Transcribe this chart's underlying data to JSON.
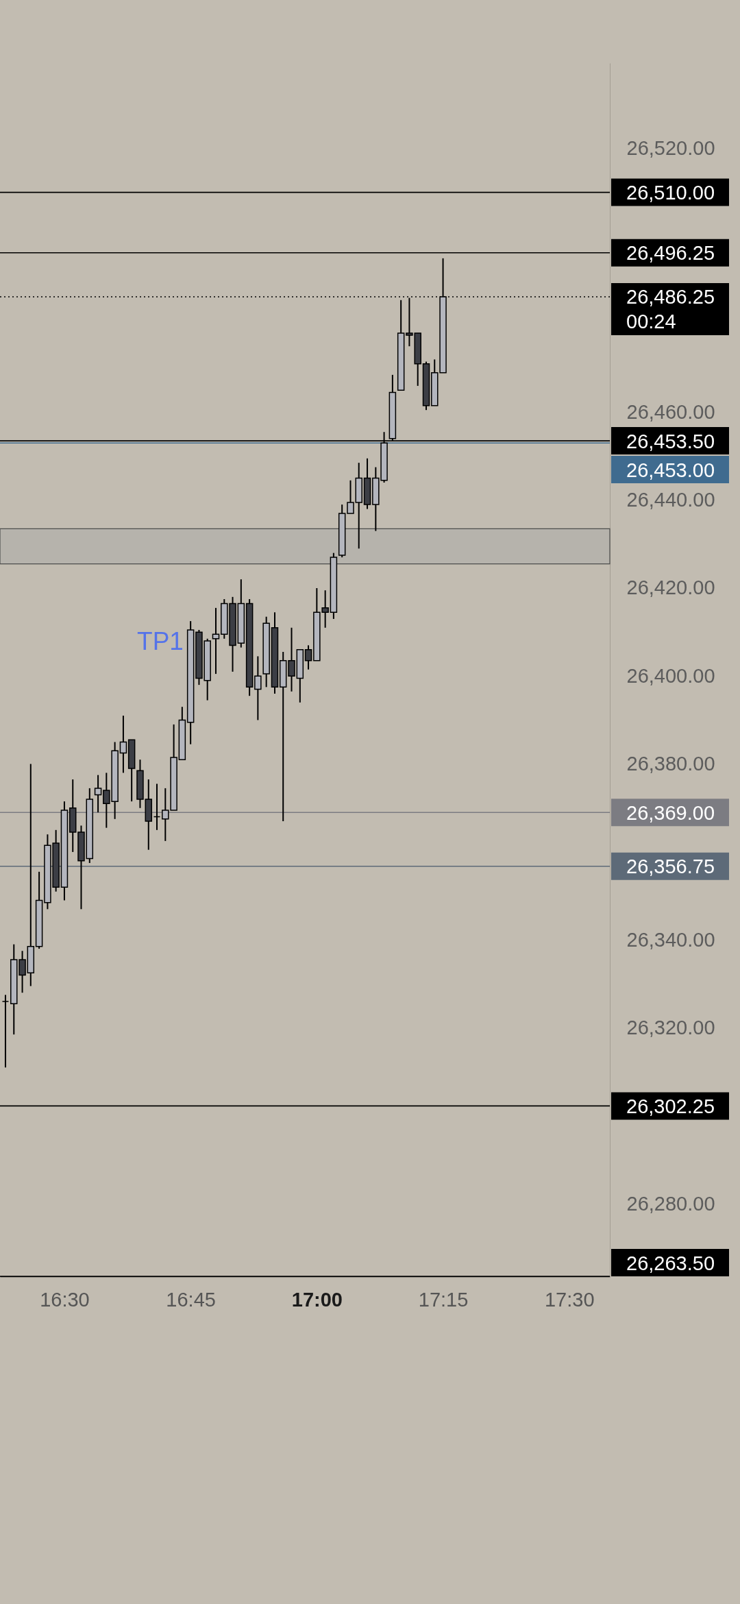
{
  "chart_data": {
    "type": "candlestick",
    "x": [
      16.3833,
      16.4,
      16.4167,
      16.4333,
      16.45,
      16.4667,
      16.4833,
      16.5,
      16.5167,
      16.5333,
      16.55,
      16.5667,
      16.5833,
      16.6,
      16.6167,
      16.6333,
      16.65,
      16.6667,
      16.6833,
      16.7,
      16.7167,
      16.7333,
      16.75,
      16.7667,
      16.7833,
      16.8,
      16.8167,
      16.8333,
      16.85,
      16.8667,
      16.8833,
      16.9,
      16.9167,
      16.9333,
      16.95,
      16.9667,
      16.9833,
      17,
      17.0167,
      17.0333,
      17.05,
      17.0667,
      17.0833,
      17.1,
      17.1167,
      17.1333,
      17.15,
      17.1667,
      17.1833,
      17.2,
      17.2167,
      17.2333,
      17.25
    ],
    "ohlc": [
      [
        26326,
        26327.5,
        26311,
        26326
      ],
      [
        26325.5,
        26339,
        26318.5,
        26335.5
      ],
      [
        26335.5,
        26337.5,
        26328,
        26332
      ],
      [
        26332.5,
        26380,
        26329.5,
        26338.5
      ],
      [
        26338.5,
        26355.5,
        26338,
        26349
      ],
      [
        26348.5,
        26364,
        26347,
        26361.5
      ],
      [
        26362,
        26365,
        26351,
        26352
      ],
      [
        26352,
        26371.5,
        26349,
        26369.5
      ],
      [
        26370,
        26376.5,
        26360,
        26364.5
      ],
      [
        26364.5,
        26366,
        26347,
        26358
      ],
      [
        26358.5,
        26374.5,
        26357.5,
        26372
      ],
      [
        26373,
        26377.5,
        26369,
        26374.5
      ],
      [
        26374,
        26378,
        26365.5,
        26371
      ],
      [
        26371.5,
        26385,
        26367.5,
        26383
      ],
      [
        26382.5,
        26391,
        26378,
        26385
      ],
      [
        26385.5,
        26385.5,
        26371.5,
        26379
      ],
      [
        26378.5,
        26381,
        26370,
        26372
      ],
      [
        26372,
        26376.5,
        26360.5,
        26367
      ],
      [
        26368,
        26375.5,
        26365,
        26368
      ],
      [
        26367.5,
        26374.5,
        26362.5,
        26369.5
      ],
      [
        26369.5,
        26389,
        26369.5,
        26381.5
      ],
      [
        26381,
        26393,
        26381,
        26390
      ],
      [
        26389.5,
        26412.5,
        26384.5,
        26410.5
      ],
      [
        26410,
        26410.5,
        26398,
        26399.5
      ],
      [
        26399,
        26408.5,
        26394.5,
        26408
      ],
      [
        26408.5,
        26415.5,
        26400.5,
        26409.5
      ],
      [
        26409.5,
        26417.5,
        26408.5,
        26416.5
      ],
      [
        26416.5,
        26418,
        26401,
        26407
      ],
      [
        26407.5,
        26422,
        26406.5,
        26416.5
      ],
      [
        26416.5,
        26417.5,
        26395.5,
        26397.5
      ],
      [
        26397,
        26404.5,
        26390,
        26400
      ],
      [
        26400.5,
        26413.5,
        26397.5,
        26412
      ],
      [
        26411,
        26414.5,
        26396,
        26397.5
      ],
      [
        26397.5,
        26405.5,
        26367,
        26403.5
      ],
      [
        26403.5,
        26411,
        26396.5,
        26400
      ],
      [
        26399.5,
        26406,
        26394,
        26406
      ],
      [
        26406,
        26407,
        26401.5,
        26403.5
      ],
      [
        26403.5,
        26420,
        26403.5,
        26414.5
      ],
      [
        26415.5,
        26419.5,
        26411,
        26414.5
      ],
      [
        26414.5,
        26428,
        26413,
        26427
      ],
      [
        26427.5,
        26439,
        26427,
        26437
      ],
      [
        26437,
        26444.5,
        26437,
        26439.5
      ],
      [
        26439.5,
        26448.5,
        26429,
        26445
      ],
      [
        26445,
        26449.5,
        26438,
        26439
      ],
      [
        26439,
        26447.5,
        26433,
        26445
      ],
      [
        26444.5,
        26455.5,
        26444,
        26453
      ],
      [
        26454,
        26468.5,
        26453.5,
        26464.5
      ],
      [
        26465,
        26485.5,
        26465,
        26478
      ],
      [
        26478,
        26486,
        26475,
        26477.5
      ],
      [
        26478,
        26478,
        26466,
        26471
      ],
      [
        26471,
        26471.5,
        26460.5,
        26461.5
      ],
      [
        26461.5,
        26472,
        26461.5,
        26469
      ],
      [
        26469,
        26495,
        26469,
        26486.25
      ]
    ],
    "colors": [
      "#000000",
      "#b4b6be",
      "#3c3e45",
      "#b4b6be",
      "#b4b6be",
      "#b4b6be",
      "#3c3e45",
      "#b4b6be",
      "#3c3e45",
      "#3c3e45",
      "#b4b6be",
      "#b4b6be",
      "#3c3e45",
      "#b4b6be",
      "#b4b6be",
      "#3c3e45",
      "#3c3e45",
      "#3c3e45",
      "#000000",
      "#b4b6be",
      "#b4b6be",
      "#b4b6be",
      "#b4b6be",
      "#3c3e45",
      "#b4b6be",
      "#b4b6be",
      "#b4b6be",
      "#3c3e45",
      "#b4b6be",
      "#3c3e45",
      "#b4b6be",
      "#b4b6be",
      "#3c3e45",
      "#b4b6be",
      "#3c3e45",
      "#b4b6be",
      "#3c3e45",
      "#b4b6be",
      "#3c3e45",
      "#b4b6be",
      "#b4b6be",
      "#b4b6be",
      "#b4b6be",
      "#3c3e45",
      "#b4b6be",
      "#b4b6be",
      "#b4b6be",
      "#b4b6be",
      "#3c3e45",
      "#3c3e45",
      "#3c3e45",
      "#b4b6be",
      "#b4b6be"
    ],
    "xlim": [
      16.3725,
      17.5804
    ],
    "xticks": [
      {
        "value": 16.5,
        "label": "16:30"
      },
      {
        "value": 16.75,
        "label": "16:45"
      },
      {
        "value": 17,
        "label": "17:00"
      },
      {
        "value": 17.25,
        "label": "17:15"
      },
      {
        "value": 17.5,
        "label": "17:30"
      }
    ],
    "ylim": [
      26263.5,
      26539.4
    ],
    "yticks": [
      {
        "value": 26280,
        "label": "26,280.00"
      },
      {
        "value": 26320,
        "label": "26,320.00"
      },
      {
        "value": 26340,
        "label": "26,340.00"
      },
      {
        "value": 26380,
        "label": "26,380.00"
      },
      {
        "value": 26400,
        "label": "26,400.00"
      },
      {
        "value": 26420,
        "label": "26,420.00"
      },
      {
        "value": 26440,
        "label": "26,440.00"
      },
      {
        "value": 26460,
        "label": "26,460.00"
      },
      {
        "value": 26520,
        "label": "26,520.00"
      }
    ],
    "ref_lines": [
      {
        "axis": "y",
        "value": 26510,
        "label": "26,510.00",
        "color": "#000000"
      },
      {
        "axis": "y",
        "value": 26496.25,
        "label": "26,496.25",
        "color": "#000000"
      },
      {
        "axis": "y",
        "value": 26486.25,
        "label": "26,486.25\n00:24",
        "color": "#000000",
        "line_style": "dotted"
      },
      {
        "axis": "y",
        "value": 26453.5,
        "label": "26,453.50",
        "color": "#000000"
      },
      {
        "axis": "y",
        "value": 26453,
        "label": "26,453.00",
        "color": "#3f6b8f"
      },
      {
        "axis": "y",
        "value": 26369,
        "label": "26,369.00",
        "color": "#7c7c82"
      },
      {
        "axis": "y",
        "value": 26356.75,
        "label": "26,356.75",
        "color": "#5d6a78"
      },
      {
        "axis": "y",
        "value": 26302.25,
        "label": "26,302.25",
        "color": "#000000"
      },
      {
        "axis": "y",
        "value": 26263.5,
        "label": "26,263.50",
        "color": "#000000"
      }
    ],
    "bands": [
      {
        "axis": "y",
        "from": 26425.5,
        "to": 26433.5,
        "color": "#b4b1ab"
      }
    ],
    "annotations": [
      "TP1"
    ]
  }
}
